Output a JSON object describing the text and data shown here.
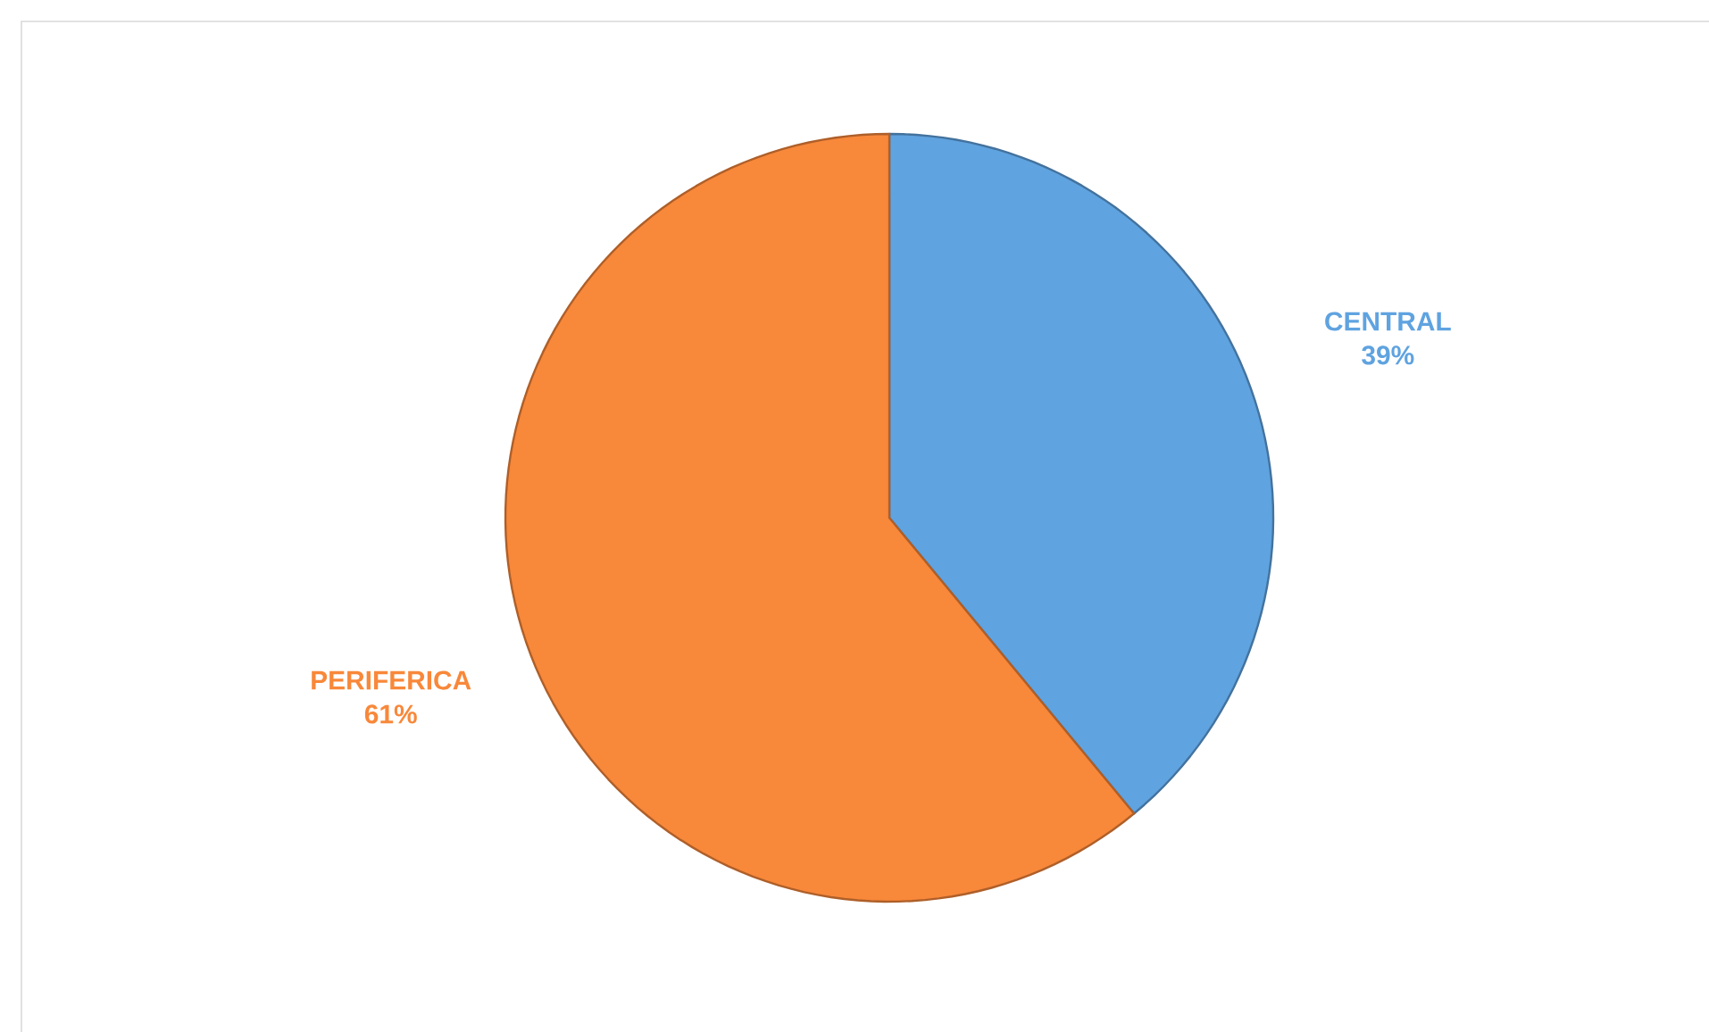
{
  "chart_data": {
    "type": "pie",
    "categories": [
      "CENTRAL",
      "PERIFERICA"
    ],
    "values": [
      39,
      61
    ],
    "colors": [
      "#5fa3e0",
      "#f8883a"
    ],
    "value_labels": [
      "39%",
      "61%"
    ]
  }
}
